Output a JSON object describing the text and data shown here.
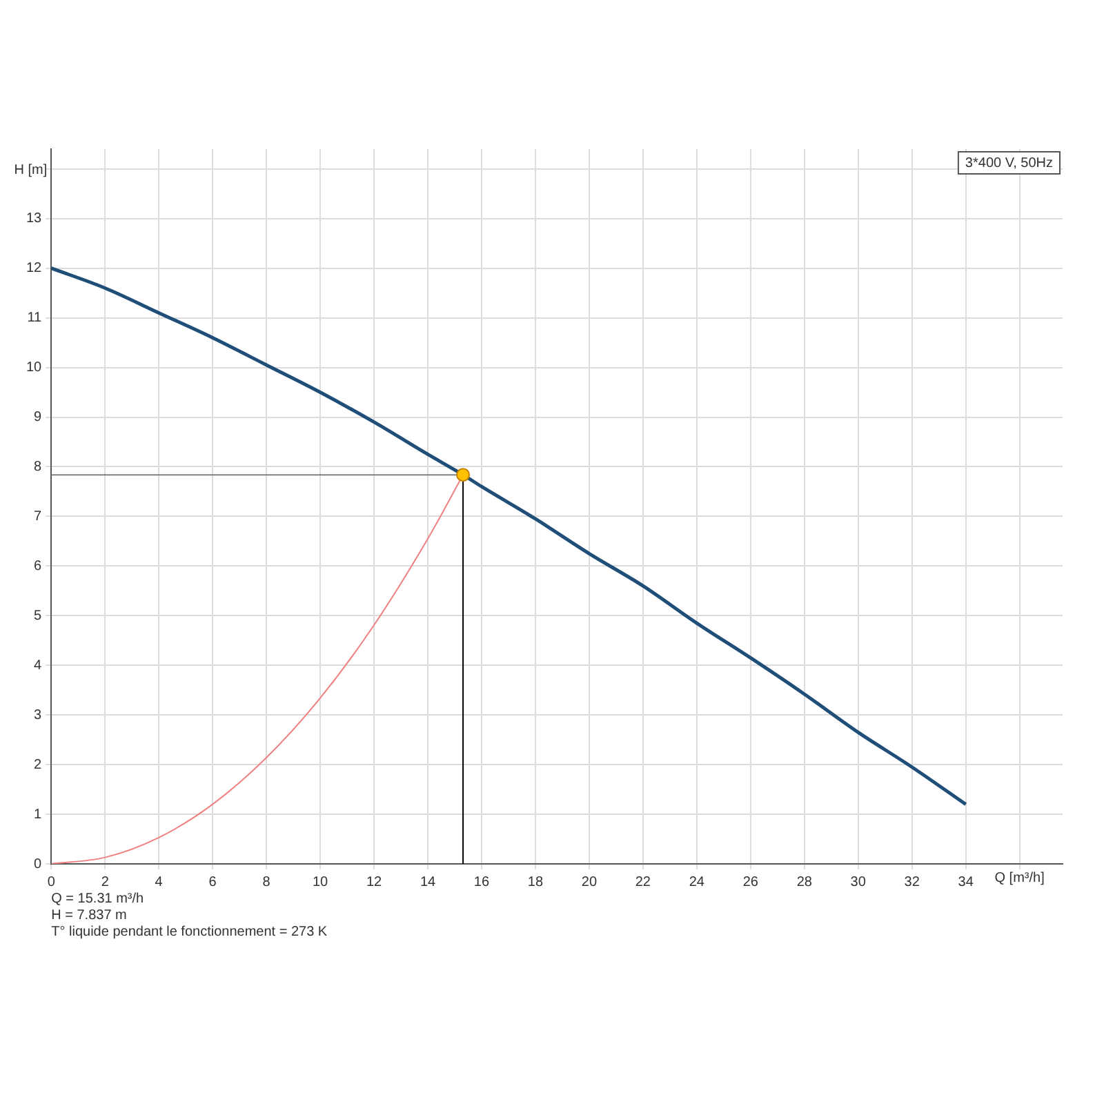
{
  "chart_data": {
    "type": "line",
    "xlabel": "Q [m³/h]",
    "ylabel": "H [m]",
    "xlim": [
      0,
      37.6
    ],
    "xticks": [
      0,
      2,
      4,
      6,
      8,
      10,
      12,
      14,
      16,
      18,
      20,
      22,
      24,
      26,
      28,
      30,
      32,
      34,
      {
        "value": 36,
        "label": null
      }
    ],
    "ylim": [
      0,
      14.4
    ],
    "yticks": [
      0,
      1,
      2,
      3,
      4,
      5,
      6,
      7,
      8,
      9,
      10,
      11,
      12,
      13,
      {
        "value": 14,
        "label": null
      }
    ],
    "grid": true,
    "marker": "none",
    "line_style": "solid",
    "series": [
      {
        "color": "#1f4e79",
        "x": [
          0,
          2,
          4,
          6,
          8,
          10,
          12,
          14,
          15.31,
          16,
          18,
          20,
          22,
          24,
          26,
          28,
          30,
          32,
          34
        ],
        "values": [
          12.0,
          11.6,
          11.1,
          10.6,
          10.05,
          9.5,
          8.9,
          8.25,
          7.837,
          7.6,
          6.95,
          6.25,
          5.6,
          4.85,
          4.15,
          3.42,
          2.65,
          1.95,
          1.2
        ]
      },
      {
        "color": "#f08080",
        "x": [
          0,
          2,
          4,
          6,
          8,
          10,
          12,
          14,
          15.31
        ],
        "values": [
          0,
          0.13,
          0.53,
          1.2,
          2.14,
          3.34,
          4.81,
          6.55,
          7.837
        ]
      },
      {
        "color": "#808080",
        "x": [
          0,
          15.31
        ],
        "values": [
          7.837,
          7.837
        ]
      },
      {
        "color": "#000000",
        "x": [
          15.31,
          15.31
        ],
        "values": [
          7.837,
          0
        ]
      },
      {
        "type": "scatter",
        "color": "#ffc000",
        "marker": "circle",
        "x": [
          15.31
        ],
        "values": [
          7.837
        ]
      }
    ],
    "annotations": [
      "3*400 V, 50Hz",
      "Q = 15.31 m³/h",
      "H = 7.837 m",
      "T° liquide pendant le fonctionnement = 273 K"
    ]
  }
}
